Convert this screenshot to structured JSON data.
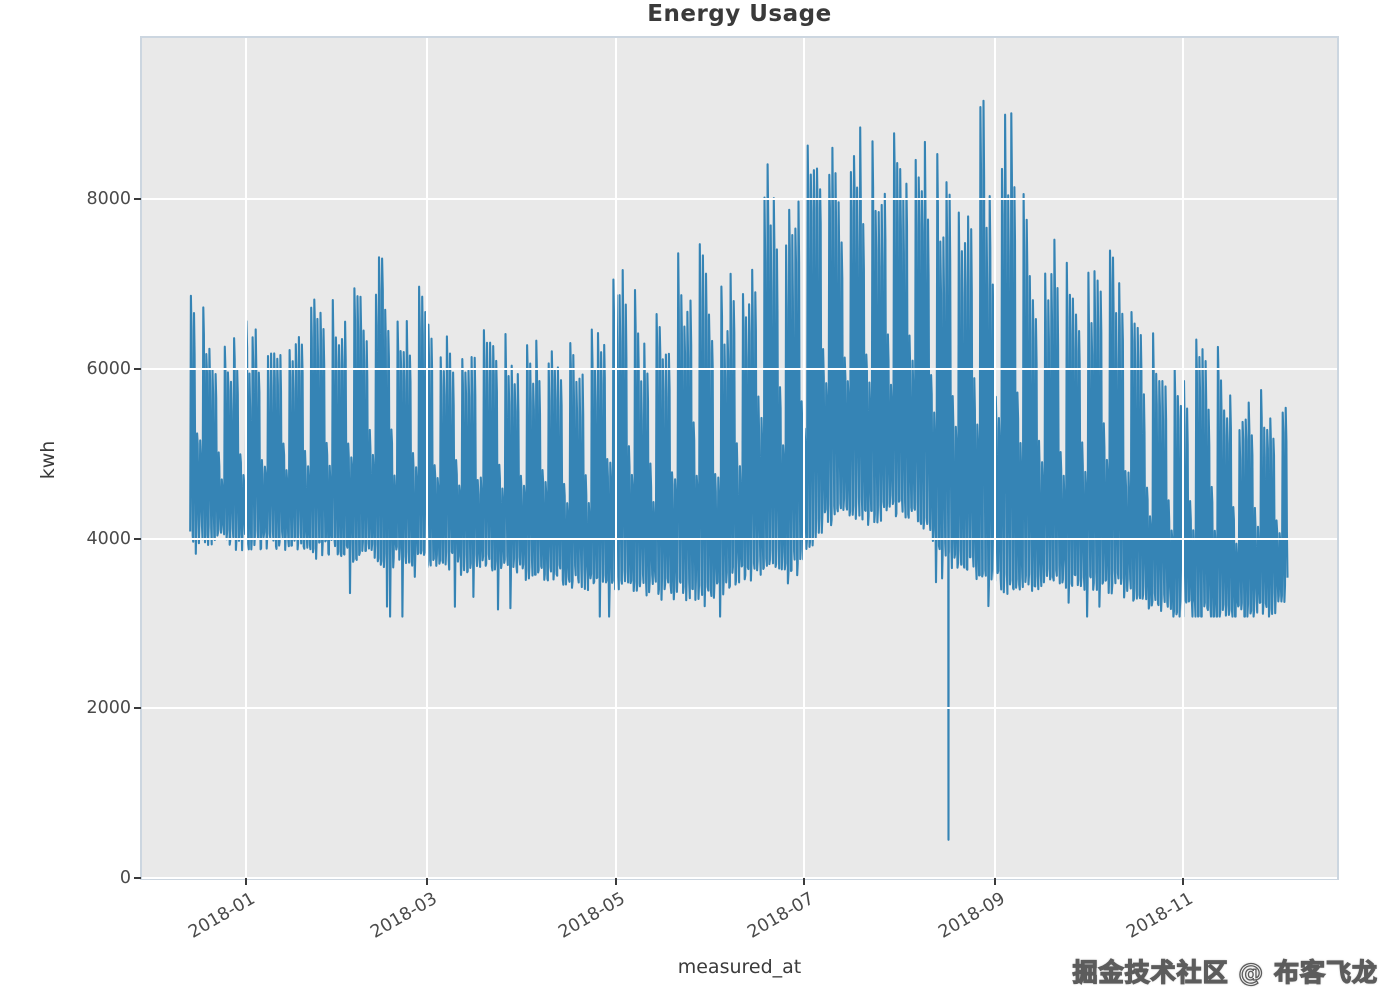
{
  "page": {
    "watermark": "掘金技术社区 @ 布客飞龙"
  },
  "chart_data": {
    "type": "line",
    "title": "Energy Usage",
    "xlabel": "measured_at",
    "ylabel": "kwh",
    "line_color": "#3584b5",
    "plot_bg_color": "#e9e9e9",
    "grid_color": "#ffffff",
    "spine_color": "#ccd6e0",
    "tick_text_color": "#4a4a4a",
    "title_color": "#3a3a3a",
    "grid": true,
    "legend": false,
    "x_start_date": "2017-12-14",
    "x_end_date": "2018-12-04",
    "ylim": [
      0,
      9890
    ],
    "yticks": [
      {
        "label": "0",
        "value": 0
      },
      {
        "label": "2000",
        "value": 2000
      },
      {
        "label": "4000",
        "value": 4000
      },
      {
        "label": "6000",
        "value": 6000
      },
      {
        "label": "8000",
        "value": 8000
      }
    ],
    "xticks": [
      {
        "label": "2018-01",
        "day": 18
      },
      {
        "label": "2018-03",
        "day": 77
      },
      {
        "label": "2018-05",
        "day": 138
      },
      {
        "label": "2018-07",
        "day": 199
      },
      {
        "label": "2018-09",
        "day": 261
      },
      {
        "label": "2018-11",
        "day": 322
      }
    ],
    "series": [
      {
        "name": "kwh",
        "sampling": "sub-daily readings depicted as a daily min/max envelope; day 0 = 2017-12-14",
        "envelope_days": [
          0,
          3,
          6,
          10,
          14,
          18,
          25,
          32,
          40,
          48,
          56,
          62,
          68,
          75,
          82,
          90,
          98,
          106,
          114,
          122,
          130,
          138,
          141,
          146,
          152,
          158,
          164,
          170,
          176,
          182,
          187,
          192,
          197,
          202,
          207,
          212,
          217,
          222,
          227,
          232,
          235,
          239,
          243,
          247,
          251,
          256,
          260,
          265,
          270,
          275,
          280,
          285,
          290,
          295,
          300,
          305,
          310,
          315,
          320,
          325,
          330,
          335,
          340,
          345,
          350,
          355
        ],
        "envelope_low": [
          4050,
          4050,
          4050,
          4050,
          4000,
          4000,
          3950,
          3950,
          3900,
          3900,
          3850,
          3800,
          3800,
          3800,
          3750,
          3700,
          3700,
          3650,
          3600,
          3550,
          3500,
          3500,
          3480,
          3450,
          3420,
          3420,
          3400,
          3450,
          3550,
          3650,
          3700,
          3750,
          3700,
          4150,
          4300,
          4400,
          4350,
          4250,
          4400,
          4350,
          4300,
          4100,
          3900,
          3750,
          3700,
          3600,
          3550,
          3450,
          3500,
          3500,
          3550,
          3500,
          3450,
          3500,
          3480,
          3400,
          3300,
          3250,
          3150,
          3150,
          3120,
          3150,
          3120,
          3150,
          3200,
          3420
        ],
        "envelope_high": [
          6850,
          6950,
          6400,
          6150,
          6350,
          6500,
          6350,
          6550,
          6900,
          6700,
          7000,
          7400,
          6650,
          6950,
          6500,
          6300,
          6450,
          6250,
          6400,
          6300,
          6450,
          7300,
          7420,
          6500,
          6600,
          7300,
          7680,
          6900,
          7150,
          7350,
          8980,
          8050,
          8300,
          8750,
          8800,
          8450,
          9060,
          8600,
          8820,
          8650,
          9120,
          8500,
          8460,
          8400,
          8380,
          9420,
          8300,
          9260,
          8060,
          7320,
          7460,
          7120,
          6950,
          7560,
          7300,
          7000,
          6500,
          6150,
          5950,
          6250,
          6420,
          6050,
          5650,
          5750,
          5600,
          5620
        ]
      }
    ],
    "weekday_high_factor": [
      0.95,
      0.86,
      0.44,
      0.36,
      1.0,
      0.93,
      0.9
    ],
    "anomalies": [
      {
        "day": 245,
        "date": "2018-08-16",
        "value": 450
      }
    ]
  }
}
